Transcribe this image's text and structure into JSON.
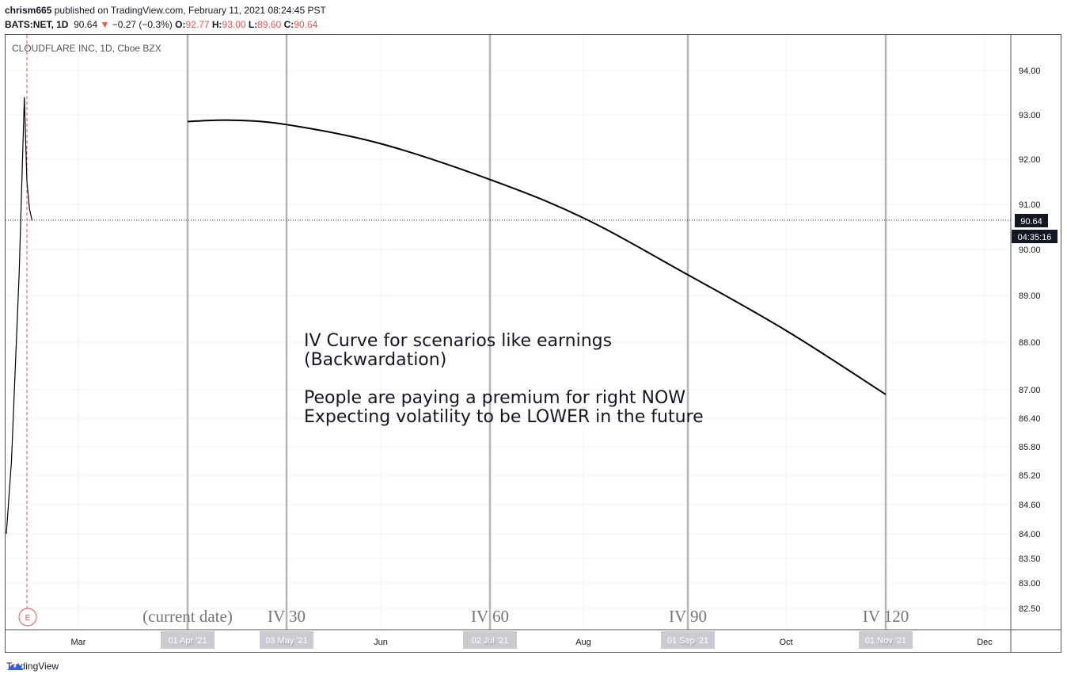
{
  "header": {
    "username": "chrism665",
    "published_text": "published on TradingView.com, February 11, 2021 08:24:45 PST",
    "symbol": "BATS:NET, 1D",
    "last": "90.64",
    "change": "−0.27 (−0.3%)",
    "o_label": "O:",
    "o_value": "92.77",
    "h_label": "H:",
    "h_value": "93.00",
    "l_label": "L:",
    "l_value": "89.60",
    "c_label": "C:",
    "c_value": "90.64"
  },
  "chart_title": "CLOUDFLARE INC, 1D, Cboe BZX",
  "price_label": "90.64",
  "countdown_label": "04:35:16",
  "earnings_marker": "E",
  "annotation_lines": [
    "IV Curve for scenarios like earnings",
    "(Backwardation)",
    "",
    "People are paying a premium for right NOW",
    "Expecting volatility to be LOWER in the future"
  ],
  "vertical_labels": [
    "(current date)",
    "IV 30",
    "IV 60",
    "IV 90",
    "IV 120"
  ],
  "date_badges": [
    "01 Apr '21",
    "03 May '21",
    "02 Jul '21",
    "01 Sep '21",
    "01 Nov '21"
  ],
  "footer": {
    "brand": "TradingView"
  },
  "chart_data": {
    "type": "line",
    "title": "CLOUDFLARE INC, 1D, Cboe BZX",
    "y_ticks": [
      "94.00",
      "93.00",
      "92.00",
      "91.00",
      "90.00",
      "89.00",
      "88.00",
      "87.00",
      "86.40",
      "85.80",
      "85.20",
      "84.60",
      "84.00",
      "83.50",
      "83.00",
      "82.50"
    ],
    "x_ticks": [
      "Mar",
      "Apr",
      "May",
      "Jun",
      "Jul",
      "Aug",
      "Sep",
      "Oct",
      "Nov",
      "Dec"
    ],
    "current_price": 90.64,
    "series": [
      {
        "x": [
          "2021-02-01",
          "2021-02-03",
          "2021-02-06",
          "2021-02-08",
          "2021-02-09",
          "2021-02-10",
          "2021-02-11"
        ],
        "values": [
          84.0,
          85.5,
          89.5,
          93.4,
          91.5,
          90.9,
          90.64
        ]
      },
      {
        "x": [
          "2021-04-01",
          "2021-04-15",
          "2021-05-03",
          "2021-06-01",
          "2021-07-02",
          "2021-08-01",
          "2021-09-01",
          "2021-10-01",
          "2021-11-01"
        ],
        "values": [
          92.85,
          92.88,
          92.78,
          92.35,
          91.55,
          90.7,
          89.45,
          88.25,
          86.9
        ]
      }
    ],
    "vertical_lines": [
      "2021-04-01",
      "2021-05-03",
      "2021-07-02",
      "2021-09-01",
      "2021-11-01"
    ],
    "grid": true
  }
}
